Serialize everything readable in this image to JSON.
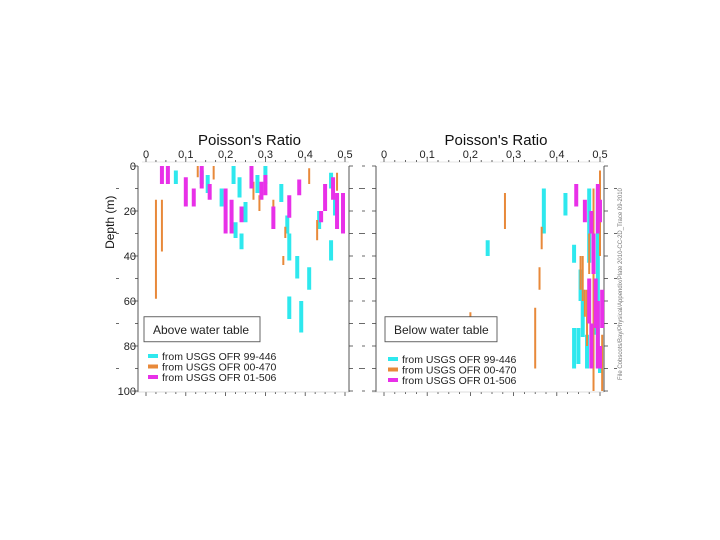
{
  "credit": "File Cobscots/Bay/Physical/Appendix/Plate 2010-CC-2D_Trace 09-2010",
  "series_colors": {
    "s1": "#2ee8ee",
    "s2": "#e8893a",
    "s3": "#e830e8"
  },
  "chart_data": [
    {
      "type": "bar",
      "title": "Poisson's Ratio",
      "xlabel": "",
      "ylabel": "Depth (m)",
      "xlim": [
        0,
        0.5
      ],
      "ylim": [
        0,
        100
      ],
      "x_ticks": [
        "0",
        "0.1",
        "0.2",
        "0.3",
        "0.4",
        "0.5"
      ],
      "y_ticks": [
        "0",
        "20",
        "40",
        "60",
        "80",
        "100"
      ],
      "annotation": "Above water table",
      "legend_position": "bottom-left",
      "series": [
        {
          "name": "from USGS OFR 99-446",
          "color": "#2ee8ee",
          "intervals": [
            [
              0.075,
              2,
              8
            ],
            [
              0.14,
              2,
              8
            ],
            [
              0.155,
              4,
              12
            ],
            [
              0.19,
              10,
              18
            ],
            [
              0.22,
              0,
              8
            ],
            [
              0.235,
              5,
              14
            ],
            [
              0.25,
              16,
              25
            ],
            [
              0.225,
              25,
              32
            ],
            [
              0.24,
              30,
              37
            ],
            [
              0.28,
              4,
              12
            ],
            [
              0.3,
              0,
              8
            ],
            [
              0.34,
              8,
              16
            ],
            [
              0.355,
              22,
              30
            ],
            [
              0.36,
              30,
              42
            ],
            [
              0.38,
              40,
              50
            ],
            [
              0.36,
              58,
              68
            ],
            [
              0.39,
              60,
              74
            ],
            [
              0.41,
              45,
              55
            ],
            [
              0.435,
              20,
              28
            ],
            [
              0.465,
              33,
              42
            ],
            [
              0.465,
              3,
              10
            ],
            [
              0.475,
              14,
              22
            ]
          ]
        },
        {
          "name": "from USGS OFR 00-470",
          "color": "#e8893a",
          "intervals": [
            [
              0.025,
              15,
              59
            ],
            [
              0.04,
              15,
              38
            ],
            [
              0.13,
              0,
              5
            ],
            [
              0.17,
              0,
              6
            ],
            [
              0.27,
              7,
              15
            ],
            [
              0.285,
              13,
              20
            ],
            [
              0.32,
              15,
              22
            ],
            [
              0.35,
              27,
              32
            ],
            [
              0.345,
              40,
              44
            ],
            [
              0.41,
              1,
              8
            ],
            [
              0.43,
              24,
              33
            ],
            [
              0.48,
              3,
              11
            ]
          ]
        },
        {
          "name": "from USGS OFR 01-506",
          "color": "#e830e8",
          "intervals": [
            [
              0.04,
              0,
              8
            ],
            [
              0.055,
              0,
              8
            ],
            [
              0.1,
              5,
              18
            ],
            [
              0.12,
              10,
              18
            ],
            [
              0.14,
              0,
              10
            ],
            [
              0.16,
              8,
              15
            ],
            [
              0.2,
              10,
              30
            ],
            [
              0.215,
              15,
              30
            ],
            [
              0.24,
              18,
              25
            ],
            [
              0.265,
              0,
              10
            ],
            [
              0.29,
              7,
              15
            ],
            [
              0.3,
              4,
              13
            ],
            [
              0.32,
              18,
              28
            ],
            [
              0.36,
              13,
              23
            ],
            [
              0.385,
              6,
              13
            ],
            [
              0.44,
              20,
              25
            ],
            [
              0.45,
              8,
              20
            ],
            [
              0.47,
              5,
              15
            ],
            [
              0.48,
              12,
              28
            ],
            [
              0.495,
              12,
              30
            ]
          ]
        }
      ]
    },
    {
      "type": "bar",
      "title": "Poisson's Ratio",
      "xlabel": "",
      "ylabel": "",
      "xlim": [
        0,
        0.5
      ],
      "ylim": [
        0,
        100
      ],
      "x_ticks": [
        "0",
        "0.1",
        "0.2",
        "0.3",
        "0.4",
        "0.5"
      ],
      "y_ticks": [
        "",
        "",
        "",
        "",
        "",
        ""
      ],
      "annotation": "Below water table",
      "legend_position": "bottom-left",
      "series": [
        {
          "name": "from USGS OFR 99-446",
          "color": "#2ee8ee",
          "intervals": [
            [
              0.24,
              33,
              40
            ],
            [
              0.37,
              10,
              30
            ],
            [
              0.42,
              12,
              22
            ],
            [
              0.44,
              35,
              43
            ],
            [
              0.455,
              46,
              60
            ],
            [
              0.46,
              55,
              76
            ],
            [
              0.45,
              72,
              88
            ],
            [
              0.475,
              10,
              43
            ],
            [
              0.495,
              10,
              90
            ],
            [
              0.44,
              72,
              90
            ],
            [
              0.47,
              75,
              90
            ],
            [
              0.5,
              83,
              92
            ],
            [
              0.49,
              55,
              75
            ]
          ]
        },
        {
          "name": "from USGS OFR 00-470",
          "color": "#e8893a",
          "intervals": [
            [
              0.2,
              65,
              71
            ],
            [
              0.28,
              12,
              28
            ],
            [
              0.365,
              27,
              37
            ],
            [
              0.36,
              45,
              55
            ],
            [
              0.46,
              40,
              60
            ],
            [
              0.475,
              30,
              48
            ],
            [
              0.485,
              10,
              100
            ],
            [
              0.455,
              40,
              55
            ],
            [
              0.47,
              55,
              80
            ],
            [
              0.5,
              2,
              40
            ],
            [
              0.35,
              63,
              90
            ],
            [
              0.465,
              55,
              67
            ],
            [
              0.505,
              75,
              100
            ]
          ]
        },
        {
          "name": "from USGS OFR 01-506",
          "color": "#e830e8",
          "intervals": [
            [
              0.445,
              8,
              18
            ],
            [
              0.465,
              15,
              25
            ],
            [
              0.48,
              20,
              30
            ],
            [
              0.495,
              8,
              30
            ],
            [
              0.5,
              15,
              25
            ],
            [
              0.485,
              30,
              48
            ],
            [
              0.505,
              55,
              72
            ],
            [
              0.475,
              50,
              70
            ],
            [
              0.49,
              50,
              72
            ],
            [
              0.48,
              70,
              90
            ],
            [
              0.5,
              80,
              90
            ],
            [
              0.495,
              60,
              90
            ]
          ]
        }
      ]
    }
  ]
}
